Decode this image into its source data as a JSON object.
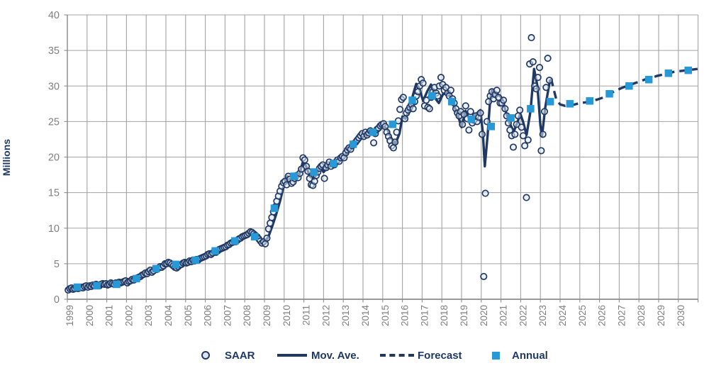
{
  "chart_data": {
    "type": "combo",
    "title": "",
    "xlabel": "",
    "ylabel": "Millions",
    "ylim": [
      0,
      40
    ],
    "y_ticks": [
      0,
      5,
      10,
      15,
      20,
      25,
      30,
      35,
      40
    ],
    "x_range": [
      1999,
      2031
    ],
    "x_years": [
      1999,
      2000,
      2001,
      2002,
      2003,
      2004,
      2005,
      2006,
      2007,
      2008,
      2009,
      2010,
      2011,
      2012,
      2013,
      2014,
      2015,
      2016,
      2017,
      2018,
      2019,
      2020,
      2021,
      2022,
      2023,
      2024,
      2025,
      2026,
      2027,
      2028,
      2029,
      2030
    ],
    "grid": true,
    "legend_position": "bottom",
    "colors": {
      "navy": "#1F3864",
      "annual_blue": "#2699D6",
      "marker_fill": "#DDE5F2",
      "grid": "#A3A3A3",
      "axis": "#8C8C8C",
      "tick_label": "#7F7F7F"
    },
    "series": [
      {
        "name": "SAAR",
        "kind": "scatter",
        "start_year": 1999,
        "monthly_values": [
          1.3,
          1.5,
          1.6,
          1.4,
          1.5,
          1.7,
          1.5,
          1.6,
          1.7,
          1.6,
          1.8,
          1.9,
          1.7,
          1.9,
          1.8,
          2.0,
          1.9,
          2.1,
          2.0,
          1.9,
          2.1,
          2.2,
          2.1,
          2.2,
          2.0,
          2.1,
          2.3,
          2.2,
          2.1,
          2.3,
          2.2,
          2.4,
          2.3,
          2.4,
          2.5,
          2.6,
          2.3,
          2.5,
          2.6,
          2.8,
          2.7,
          2.9,
          3.0,
          3.1,
          3.2,
          3.4,
          3.5,
          3.7,
          3.6,
          3.9,
          4.1,
          3.8,
          4.0,
          4.3,
          4.2,
          4.4,
          4.6,
          4.5,
          4.7,
          5.0,
          5.0,
          5.2,
          5.1,
          4.9,
          4.7,
          4.5,
          4.4,
          4.6,
          4.8,
          4.9,
          5.1,
          5.2,
          5.1,
          5.2,
          5.4,
          5.3,
          5.5,
          5.4,
          5.6,
          5.5,
          5.7,
          5.8,
          5.9,
          6.0,
          6.1,
          6.3,
          6.4,
          6.3,
          6.5,
          6.7,
          6.6,
          6.8,
          7.0,
          7.1,
          7.2,
          7.3,
          7.4,
          7.6,
          7.7,
          7.9,
          8.0,
          8.2,
          8.1,
          8.3,
          8.5,
          8.6,
          8.8,
          8.9,
          9.0,
          9.1,
          9.3,
          9.5,
          9.4,
          9.2,
          9.0,
          8.8,
          8.5,
          8.2,
          7.9,
          8.1,
          7.8,
          8.6,
          9.9,
          10.7,
          11.5,
          12.3,
          13.0,
          13.8,
          14.5,
          15.2,
          15.9,
          16.4,
          16.6,
          16.1,
          17.3,
          16.9,
          16.3,
          16.5,
          17.0,
          17.4,
          17.1,
          17.7,
          18.3,
          19.9,
          19.6,
          18.7,
          18.0,
          17.0,
          16.1,
          16.0,
          16.6,
          17.4,
          17.9,
          18.4,
          18.7,
          18.9,
          17.0,
          18.5,
          18.9,
          19.3,
          18.7,
          19.1,
          18.9,
          19.3,
          19.6,
          19.4,
          19.9,
          20.1,
          19.9,
          20.6,
          21.0,
          21.3,
          21.1,
          21.6,
          21.9,
          22.1,
          22.4,
          22.7,
          23.0,
          23.3,
          22.9,
          23.5,
          23.1,
          23.4,
          23.7,
          23.5,
          22.0,
          23.3,
          23.9,
          24.1,
          24.4,
          24.6,
          24.7,
          24.3,
          23.5,
          22.9,
          22.3,
          21.6,
          21.3,
          22.1,
          23.5,
          25.1,
          26.7,
          28.1,
          28.4,
          25.4,
          26.2,
          26.6,
          27.0,
          27.4,
          26.8,
          27.8,
          28.6,
          29.2,
          30.0,
          30.9,
          30.4,
          27.2,
          28.0,
          27.0,
          26.8,
          28.4,
          29.2,
          29.8,
          29.0,
          28.6,
          30.0,
          31.2,
          30.2,
          29.4,
          29.8,
          29.0,
          28.6,
          29.4,
          28.2,
          27.6,
          26.8,
          26.2,
          25.8,
          26.4,
          24.6,
          26.0,
          27.2,
          25.4,
          23.8,
          26.4,
          24.8,
          25.2,
          25.8,
          25.0,
          25.6,
          26.2,
          23.2,
          3.2,
          14.9,
          25.0,
          27.8,
          28.6,
          29.2,
          28.2,
          28.8,
          29.4,
          28.4,
          27.6,
          27.6,
          28.0,
          26.8,
          25.8,
          24.8,
          23.8,
          23.0,
          21.4,
          23.2,
          24.6,
          25.8,
          26.6,
          24.2,
          23.0,
          21.6,
          14.3,
          22.4,
          33.1,
          36.8,
          33.4,
          30.0,
          29.6,
          31.2,
          32.6,
          20.9,
          23.2,
          26.4,
          29.8,
          33.9,
          30.8
        ]
      },
      {
        "name": "Mov. Ave.",
        "kind": "line",
        "points": [
          [
            1999.04,
            1.5
          ],
          [
            1999.3,
            1.52
          ],
          [
            1999.6,
            1.6
          ],
          [
            1999.9,
            1.75
          ],
          [
            2000.2,
            1.85
          ],
          [
            2000.5,
            1.95
          ],
          [
            2000.8,
            2.05
          ],
          [
            2001.1,
            2.12
          ],
          [
            2001.4,
            2.2
          ],
          [
            2001.7,
            2.3
          ],
          [
            2002.0,
            2.5
          ],
          [
            2002.3,
            2.7
          ],
          [
            2002.6,
            3.0
          ],
          [
            2002.9,
            3.4
          ],
          [
            2003.2,
            3.8
          ],
          [
            2003.5,
            4.2
          ],
          [
            2003.8,
            4.6
          ],
          [
            2004.1,
            4.95
          ],
          [
            2004.35,
            5.05
          ],
          [
            2004.6,
            4.55
          ],
          [
            2004.85,
            4.85
          ],
          [
            2005.1,
            5.15
          ],
          [
            2005.4,
            5.35
          ],
          [
            2005.7,
            5.6
          ],
          [
            2006.0,
            6.1
          ],
          [
            2006.3,
            6.35
          ],
          [
            2006.6,
            6.7
          ],
          [
            2006.9,
            7.2
          ],
          [
            2007.2,
            7.6
          ],
          [
            2007.5,
            8.0
          ],
          [
            2007.8,
            8.5
          ],
          [
            2008.1,
            9.0
          ],
          [
            2008.35,
            9.45
          ],
          [
            2008.6,
            9.1
          ],
          [
            2008.85,
            8.3
          ],
          [
            2009.0,
            8.0
          ],
          [
            2009.2,
            8.8
          ],
          [
            2009.4,
            10.3
          ],
          [
            2009.6,
            12.0
          ],
          [
            2009.8,
            13.9
          ],
          [
            2010.0,
            16.2
          ],
          [
            2010.15,
            17.3
          ],
          [
            2010.35,
            16.8
          ],
          [
            2010.55,
            16.6
          ],
          [
            2010.75,
            17.4
          ],
          [
            2010.95,
            19.3
          ],
          [
            2011.1,
            18.8
          ],
          [
            2011.3,
            17.3
          ],
          [
            2011.5,
            16.9
          ],
          [
            2011.7,
            17.9
          ],
          [
            2011.85,
            18.5
          ],
          [
            2012.0,
            17.9
          ],
          [
            2012.25,
            18.7
          ],
          [
            2012.5,
            19.0
          ],
          [
            2012.75,
            19.4
          ],
          [
            2013.0,
            19.9
          ],
          [
            2013.3,
            21.0
          ],
          [
            2013.6,
            21.7
          ],
          [
            2013.9,
            22.6
          ],
          [
            2014.15,
            23.2
          ],
          [
            2014.4,
            23.3
          ],
          [
            2014.6,
            23.1
          ],
          [
            2014.85,
            23.9
          ],
          [
            2015.05,
            24.4
          ],
          [
            2015.25,
            23.8
          ],
          [
            2015.45,
            22.6
          ],
          [
            2015.65,
            21.9
          ],
          [
            2015.85,
            23.3
          ],
          [
            2016.0,
            25.7
          ],
          [
            2016.15,
            25.4
          ],
          [
            2016.35,
            26.6
          ],
          [
            2016.55,
            28.9
          ],
          [
            2016.7,
            30.3
          ],
          [
            2016.85,
            29.7
          ],
          [
            2017.05,
            27.9
          ],
          [
            2017.25,
            29.2
          ],
          [
            2017.45,
            30.2
          ],
          [
            2017.65,
            28.3
          ],
          [
            2017.85,
            27.6
          ],
          [
            2018.05,
            28.8
          ],
          [
            2018.3,
            29.2
          ],
          [
            2018.55,
            27.7
          ],
          [
            2018.8,
            26.0
          ],
          [
            2019.0,
            24.2
          ],
          [
            2019.2,
            26.5
          ],
          [
            2019.4,
            25.3
          ],
          [
            2019.6,
            25.7
          ],
          [
            2019.8,
            26.2
          ],
          [
            2019.95,
            26.6
          ],
          [
            2020.08,
            23.5
          ],
          [
            2020.18,
            18.7
          ],
          [
            2020.32,
            23.0
          ],
          [
            2020.45,
            28.0
          ],
          [
            2020.55,
            29.5
          ],
          [
            2020.7,
            29.0
          ],
          [
            2020.9,
            28.7
          ],
          [
            2021.05,
            28.3
          ],
          [
            2021.25,
            26.3
          ],
          [
            2021.45,
            24.7
          ],
          [
            2021.65,
            23.6
          ],
          [
            2021.85,
            25.0
          ],
          [
            2021.98,
            26.1
          ],
          [
            2022.12,
            25.0
          ],
          [
            2022.3,
            23.1
          ],
          [
            2022.5,
            26.5
          ],
          [
            2022.68,
            32.4
          ],
          [
            2022.85,
            30.0
          ],
          [
            2023.0,
            24.5
          ],
          [
            2023.08,
            22.9
          ],
          [
            2023.25,
            27.0
          ],
          [
            2023.42,
            29.8
          ]
        ]
      },
      {
        "name": "Forecast",
        "kind": "dashed-line",
        "points": [
          [
            2023.42,
            29.8
          ],
          [
            2023.52,
            31.3
          ],
          [
            2023.65,
            29.8
          ],
          [
            2023.8,
            28.2
          ],
          [
            2024.0,
            27.4
          ],
          [
            2024.25,
            27.2
          ],
          [
            2024.5,
            27.3
          ],
          [
            2024.75,
            27.4
          ],
          [
            2025.0,
            27.6
          ],
          [
            2025.3,
            27.7
          ],
          [
            2025.6,
            27.9
          ],
          [
            2025.9,
            28.1
          ],
          [
            2026.2,
            28.4
          ],
          [
            2026.5,
            28.9
          ],
          [
            2026.8,
            29.3
          ],
          [
            2027.1,
            29.7
          ],
          [
            2027.4,
            30.0
          ],
          [
            2027.7,
            30.3
          ],
          [
            2028.0,
            30.6
          ],
          [
            2028.3,
            30.9
          ],
          [
            2028.6,
            31.1
          ],
          [
            2028.9,
            31.4
          ],
          [
            2029.2,
            31.6
          ],
          [
            2029.5,
            31.8
          ],
          [
            2029.8,
            32.0
          ],
          [
            2030.1,
            32.1
          ],
          [
            2030.4,
            32.2
          ],
          [
            2030.7,
            32.3
          ],
          [
            2030.97,
            32.4
          ]
        ]
      },
      {
        "name": "Annual",
        "kind": "square-markers",
        "years": [
          1999,
          2000,
          2001,
          2002,
          2003,
          2004,
          2005,
          2006,
          2007,
          2008,
          2009,
          2010,
          2011,
          2012,
          2013,
          2014,
          2015,
          2016,
          2017,
          2018,
          2019,
          2020,
          2021,
          2022,
          2023,
          2024,
          2025,
          2026,
          2027,
          2028,
          2029,
          2030
        ],
        "values": [
          1.7,
          1.9,
          2.1,
          2.9,
          4.3,
          4.9,
          5.5,
          6.8,
          8.2,
          8.8,
          12.8,
          17.3,
          17.9,
          19.1,
          21.8,
          23.5,
          24.6,
          28.0,
          28.6,
          27.8,
          25.3,
          24.3,
          25.5,
          26.8,
          27.8,
          27.5,
          27.9,
          28.9,
          30.0,
          30.9,
          31.8,
          32.2
        ]
      }
    ]
  },
  "legend": {
    "items": [
      {
        "label": "SAAR",
        "marker": "open-circle"
      },
      {
        "label": "Mov. Ave.",
        "marker": "solid-line"
      },
      {
        "label": "Forecast",
        "marker": "dashed-line"
      },
      {
        "label": "Annual",
        "marker": "filled-square"
      }
    ]
  }
}
